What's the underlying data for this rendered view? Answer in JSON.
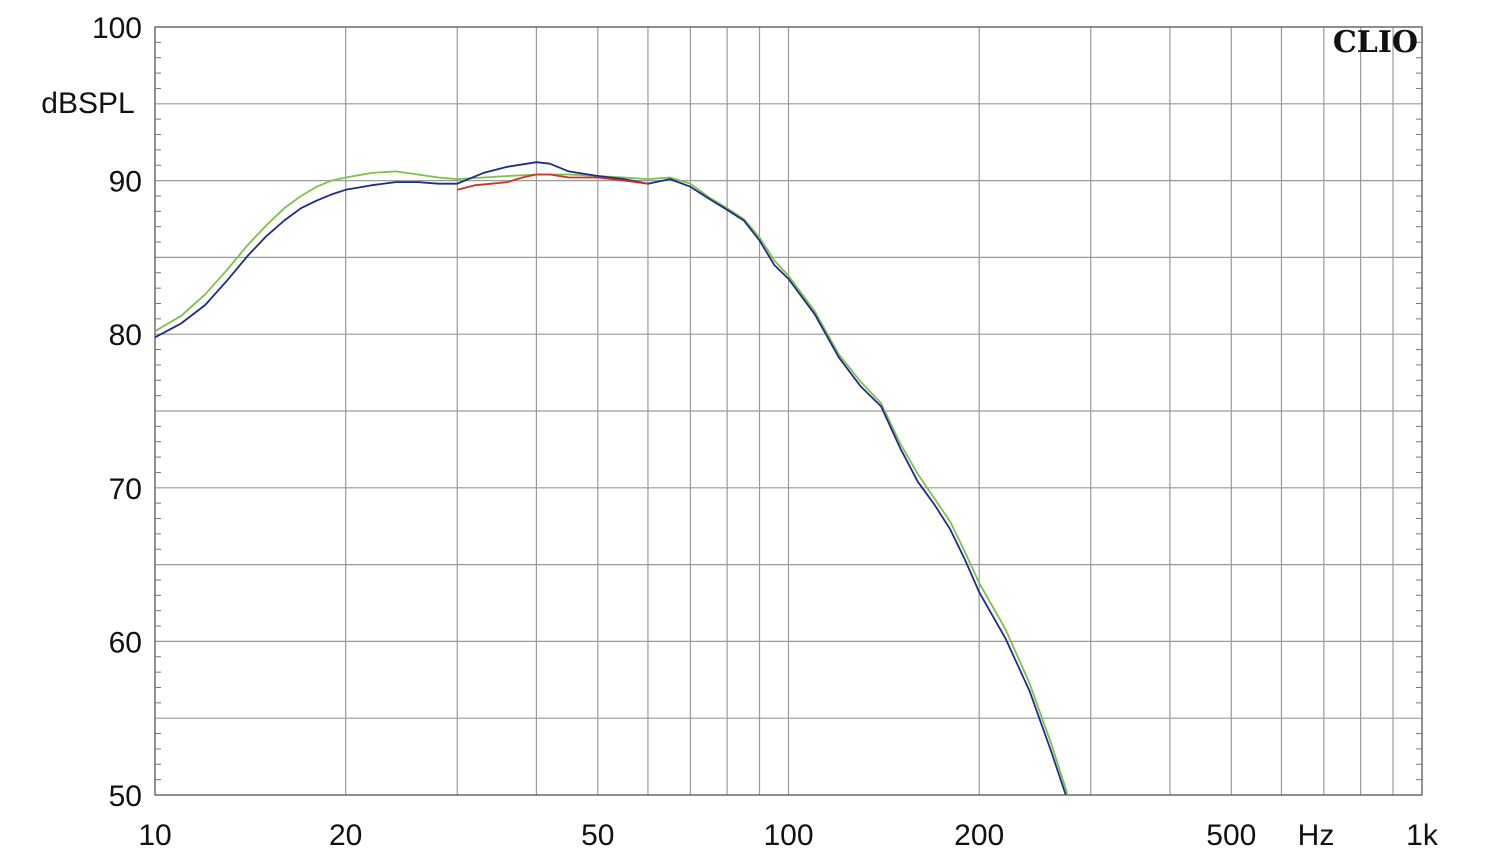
{
  "brand": "CLIO",
  "chart_data": {
    "type": "line",
    "x_scale": "log",
    "y_unit_label": "dBSPL",
    "x_unit_label": "Hz",
    "xlim": [
      10,
      1000
    ],
    "ylim": [
      50,
      100
    ],
    "grid": true,
    "x_major_ticks": [
      {
        "value": 10,
        "label": "10"
      },
      {
        "value": 20,
        "label": "20"
      },
      {
        "value": 50,
        "label": "50"
      },
      {
        "value": 100,
        "label": "100"
      },
      {
        "value": 200,
        "label": "200"
      },
      {
        "value": 500,
        "label": "500"
      },
      {
        "value": 1000,
        "label": "1k"
      }
    ],
    "y_ticks": [
      {
        "value": 100,
        "label": "100"
      },
      {
        "value": 90,
        "label": "90"
      },
      {
        "value": 80,
        "label": "80"
      },
      {
        "value": 70,
        "label": "70"
      },
      {
        "value": 60,
        "label": "60"
      },
      {
        "value": 50,
        "label": "50"
      }
    ],
    "x_gridlines": [
      10,
      20,
      30,
      40,
      50,
      60,
      70,
      80,
      90,
      100,
      200,
      300,
      400,
      500,
      600,
      700,
      800,
      900,
      1000
    ],
    "y_gridlines": [
      50,
      55,
      60,
      65,
      70,
      75,
      80,
      85,
      90,
      95,
      100
    ],
    "series": [
      {
        "color": "#7cc24a",
        "x": [
          10,
          11,
          12,
          13,
          14,
          15,
          16,
          17,
          18,
          19,
          20,
          22,
          24,
          26,
          28,
          30,
          33,
          36,
          40,
          45,
          50,
          55,
          60,
          65,
          70,
          75,
          80,
          85,
          90,
          95,
          100,
          110,
          120,
          130,
          140,
          150,
          160,
          170,
          180,
          190,
          200,
          220,
          240,
          260,
          276
        ],
        "y": [
          80.2,
          81.2,
          82.6,
          84.2,
          85.8,
          87.1,
          88.2,
          89.0,
          89.6,
          90.0,
          90.2,
          90.5,
          90.6,
          90.4,
          90.2,
          90.1,
          90.2,
          90.3,
          90.4,
          90.4,
          90.3,
          90.2,
          90.1,
          90.2,
          89.8,
          88.9,
          88.2,
          87.5,
          86.3,
          84.8,
          83.8,
          81.5,
          78.7,
          76.9,
          75.5,
          72.9,
          70.9,
          69.3,
          67.8,
          65.8,
          63.8,
          60.8,
          57.3,
          53.3,
          50.0
        ]
      },
      {
        "color": "#1f2b8c",
        "x": [
          10,
          11,
          12,
          13,
          14,
          15,
          16,
          17,
          18,
          19,
          20,
          22,
          24,
          26,
          28,
          30,
          33,
          36,
          40,
          42,
          45,
          50,
          55,
          60,
          65,
          70,
          75,
          80,
          85,
          90,
          95,
          100,
          110,
          120,
          130,
          140,
          150,
          160,
          170,
          180,
          190,
          200,
          220,
          240,
          260,
          274
        ],
        "y": [
          79.8,
          80.7,
          81.9,
          83.5,
          85.1,
          86.4,
          87.4,
          88.2,
          88.7,
          89.1,
          89.4,
          89.7,
          89.9,
          89.9,
          89.8,
          89.8,
          90.5,
          90.9,
          91.2,
          91.1,
          90.6,
          90.3,
          90.1,
          89.8,
          90.1,
          89.6,
          88.8,
          88.1,
          87.4,
          86.1,
          84.5,
          83.6,
          81.3,
          78.5,
          76.6,
          75.3,
          72.6,
          70.4,
          68.9,
          67.3,
          65.3,
          63.2,
          60.2,
          56.8,
          52.8,
          50.0
        ]
      },
      {
        "color": "#d2302a",
        "x": [
          30,
          32,
          34,
          36,
          38,
          40,
          42,
          45,
          50,
          55,
          60
        ],
        "y": [
          89.4,
          89.7,
          89.8,
          89.9,
          90.2,
          90.4,
          90.4,
          90.2,
          90.2,
          90.0,
          89.8
        ]
      }
    ]
  }
}
